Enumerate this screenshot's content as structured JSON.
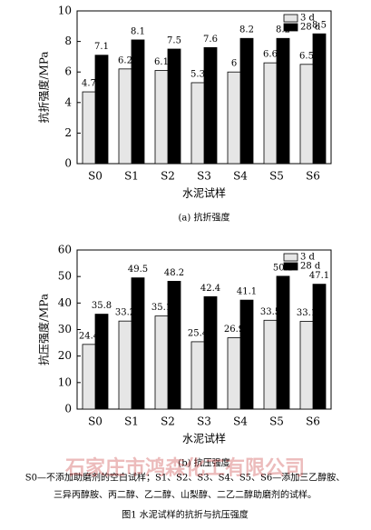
{
  "chart_data": [
    {
      "type": "bar",
      "ylabel": "抗折强度/MPa",
      "xlabel": "水泥试样",
      "subtitle": "(a) 抗折强度",
      "categories": [
        "S0",
        "S1",
        "S2",
        "S3",
        "S4",
        "S5",
        "S6"
      ],
      "series": [
        {
          "name": "3 d",
          "color": "#e6e6e6",
          "values": [
            4.7,
            6.2,
            6.1,
            5.3,
            6,
            6.6,
            6.5
          ]
        },
        {
          "name": "28 d",
          "color": "#000000",
          "values": [
            7.1,
            8.1,
            7.5,
            7.6,
            8.2,
            8.2,
            8.5
          ]
        }
      ],
      "ylim": [
        0,
        10
      ],
      "yticks": [
        0,
        2,
        4,
        6,
        8,
        10
      ],
      "legend": "upper right"
    },
    {
      "type": "bar",
      "ylabel": "抗压强度/MPa",
      "xlabel": "水泥试样",
      "subtitle": "(b) 抗压强度",
      "categories": [
        "S0",
        "S1",
        "S2",
        "S3",
        "S4",
        "S5",
        "S6"
      ],
      "series": [
        {
          "name": "3 d",
          "color": "#e6e6e6",
          "values": [
            24.4,
            33.2,
            35.1,
            25.4,
            26.9,
            33.5,
            33.1
          ]
        },
        {
          "name": "28 d",
          "color": "#000000",
          "values": [
            35.8,
            49.5,
            48.2,
            42.4,
            41.1,
            50.1,
            47.1
          ]
        }
      ],
      "ylim": [
        0,
        60
      ],
      "yticks": [
        0,
        10,
        20,
        30,
        40,
        50,
        60
      ],
      "legend": "upper right"
    }
  ],
  "figure": {
    "note": [
      "S0—不添加助磨剂的空白试样；S1、S2、S3、S4、S5、S6—添加三乙醇胺、",
      "三异丙醇胺、丙二醇、乙二醇、山梨醇、二乙二醇助磨剂的试样。"
    ],
    "caption": "图1  水泥试样的抗折与抗压强度",
    "watermark": "石家庄市鸿森化工有限公司"
  }
}
